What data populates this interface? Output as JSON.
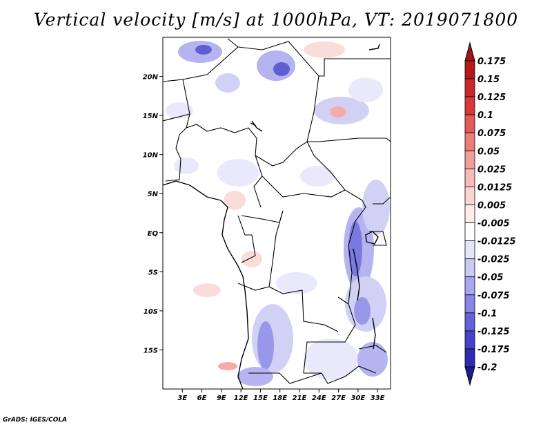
{
  "title": "Vertical velocity [m/s] at 1000hPa, VT: 2019071800",
  "credit": "GrADS: IGES/COLA",
  "map": {
    "lon_range": [
      0,
      35
    ],
    "lat_range": [
      -20,
      25
    ],
    "lat_ticks": [
      {
        "value": 20,
        "label": "20N"
      },
      {
        "value": 15,
        "label": "15N"
      },
      {
        "value": 10,
        "label": "10N"
      },
      {
        "value": 5,
        "label": "5N"
      },
      {
        "value": 0,
        "label": "EQ"
      },
      {
        "value": -5,
        "label": "5S"
      },
      {
        "value": -10,
        "label": "10S"
      },
      {
        "value": -15,
        "label": "15S"
      }
    ],
    "lon_ticks": [
      {
        "value": 3,
        "label": "3E"
      },
      {
        "value": 6,
        "label": "6E"
      },
      {
        "value": 9,
        "label": "9E"
      },
      {
        "value": 12,
        "label": "12E"
      },
      {
        "value": 15,
        "label": "15E"
      },
      {
        "value": 18,
        "label": "18E"
      },
      {
        "value": 21,
        "label": "21E"
      },
      {
        "value": 24,
        "label": "24E"
      },
      {
        "value": 27,
        "label": "27E"
      },
      {
        "value": 30,
        "label": "30E"
      },
      {
        "value": 33,
        "label": "33E"
      }
    ]
  },
  "colorbar": {
    "top_arrow_color": "#a01418",
    "bottom_arrow_color": "#1c1c8c",
    "levels": [
      {
        "label": "0.175",
        "color": "#b4181c"
      },
      {
        "label": "0.15",
        "color": "#c8282a"
      },
      {
        "label": "0.125",
        "color": "#d8393a"
      },
      {
        "label": "0.1",
        "color": "#e45a58"
      },
      {
        "label": "0.075",
        "color": "#ec7d7a"
      },
      {
        "label": "0.05",
        "color": "#f29e9b"
      },
      {
        "label": "0.025",
        "color": "#f7bcb9"
      },
      {
        "label": "0.0125",
        "color": "#fad6d3"
      },
      {
        "label": "0.005",
        "color": "#fdeceb"
      },
      {
        "label": "-0.005",
        "color": "#ffffff"
      },
      {
        "label": "-0.0125",
        "color": "#e6e6fb"
      },
      {
        "label": "-0.025",
        "color": "#cacaf5"
      },
      {
        "label": "-0.05",
        "color": "#a9a8ef"
      },
      {
        "label": "-0.075",
        "color": "#8785e6"
      },
      {
        "label": "-0.1",
        "color": "#6462db"
      },
      {
        "label": "-0.125",
        "color": "#4543cc"
      },
      {
        "label": "-0.175",
        "color": "#2e2cb4"
      },
      {
        "label": "-0.2",
        "color": "#1c1c8c"
      }
    ]
  }
}
